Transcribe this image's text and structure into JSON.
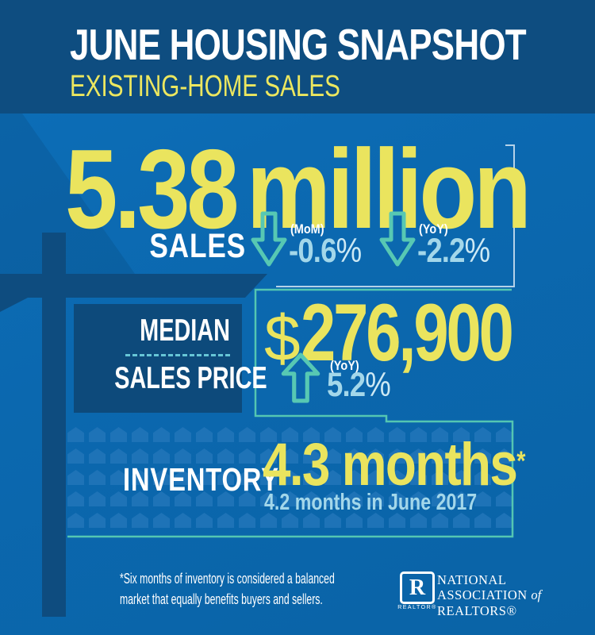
{
  "colors": {
    "header_bg": "#0e4d80",
    "main_bg": "#0b68af",
    "navy_silhouette": "#0e4c7f",
    "accent_yellow": "#eae45e",
    "light_blue_text": "#a3d7ea",
    "teal_accent": "#54c6b2",
    "white_bracket": "#b5d2e9",
    "house_icon": "#1e73b7"
  },
  "header": {
    "title": "JUNE HOUSING SNAPSHOT",
    "subtitle": "EXISTING-HOME SALES"
  },
  "sales": {
    "value": "5.38",
    "unit": "million",
    "label": "SALES",
    "mom": {
      "label": "(MoM)",
      "value": "-0.6",
      "pct": "%"
    },
    "yoy": {
      "label": "(YoY)",
      "value": "-2.2",
      "pct": "%"
    }
  },
  "median": {
    "label_line1": "MEDIAN",
    "label_line2": "SALES PRICE",
    "currency": "$",
    "value": "276,900",
    "yoy_label": "(YoY)",
    "yoy_value": "5.2",
    "pct": "%"
  },
  "inventory": {
    "label": "INVENTORY",
    "value": "4.3 months",
    "asterisk": "*",
    "comparison": "4.2 months in June 2017",
    "pattern": {
      "rows": 5,
      "cols": 21,
      "count": 105
    }
  },
  "footer": {
    "disclaimer_line1": "*Six months of inventory is considered a balanced",
    "disclaimer_line2": "market that equally benefits buyers and sellers.",
    "logo": {
      "letter": "R",
      "caption": "REALTOR®",
      "org_line1": "NATIONAL",
      "org_line2_a": "ASSOCIATION",
      "org_line2_b": "of",
      "org_line3": "REALTORS®"
    }
  },
  "chart_data": {
    "type": "table",
    "title": "June Housing Snapshot — Existing-Home Sales",
    "rows": [
      {
        "metric": "Sales",
        "value": "5.38 million",
        "mom_change_pct": -0.6,
        "yoy_change_pct": -2.2
      },
      {
        "metric": "Median Sales Price",
        "value": "$276,900",
        "yoy_change_pct": 5.2
      },
      {
        "metric": "Inventory",
        "value": "4.3 months",
        "prior_year": "4.2 months in June 2017"
      }
    ]
  }
}
